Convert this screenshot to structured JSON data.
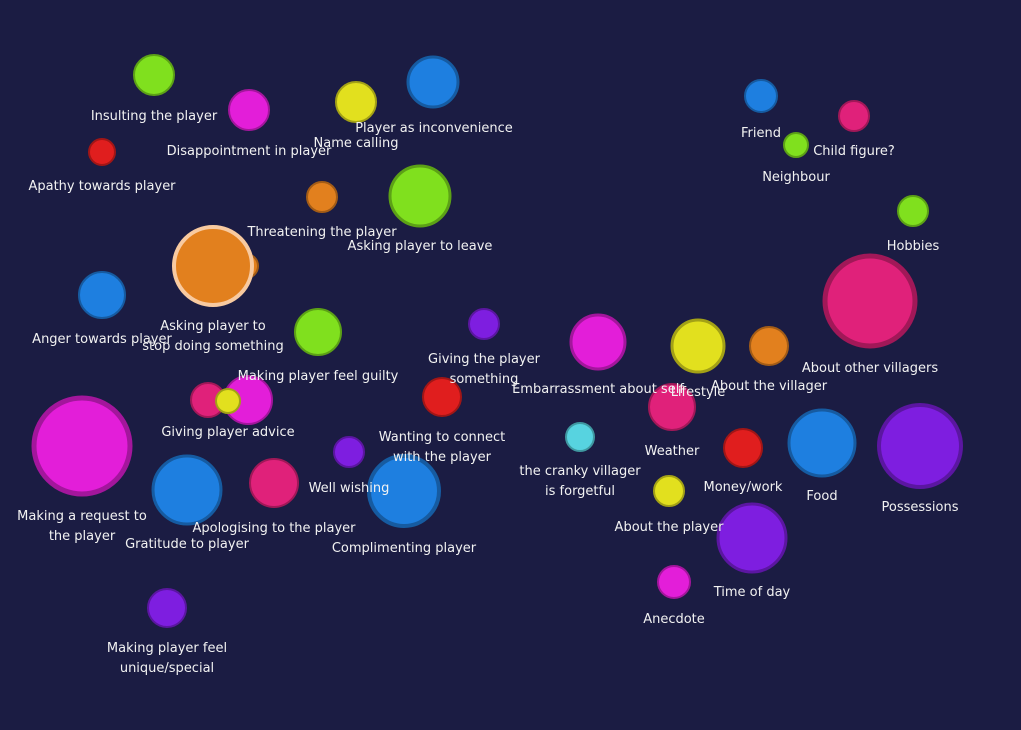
{
  "colors": {
    "background": "#1b1c43",
    "label": "#f2f2f2",
    "green": "#80e01e",
    "magenta": "#e31ed9",
    "pink": "#e0217a",
    "yellow": "#e2e01e",
    "blue": "#1e7fe0",
    "red": "#e01e1e",
    "orange": "#e2801e",
    "violet": "#7e1ee0",
    "cyan": "#57d3e0"
  },
  "nodes": [
    {
      "id": "insulting-the-player",
      "label": "Insulting the player",
      "color": "green",
      "size": 2
    },
    {
      "id": "disappointment-in-player",
      "label": "Disappointment in player",
      "color": "magenta",
      "size": 2
    },
    {
      "id": "name-calling",
      "label": "Name calling",
      "color": "yellow",
      "size": 2
    },
    {
      "id": "player-as-inconvenience",
      "label": "Player as inconvenience",
      "color": "blue",
      "size": 3
    },
    {
      "id": "apathy-towards-player",
      "label": "Apathy towards player",
      "color": "red",
      "size": 1
    },
    {
      "id": "threatening-the-player",
      "label": "Threatening the player",
      "color": "orange",
      "size": 1
    },
    {
      "id": "asking-player-to-leave",
      "label": "Asking player to leave",
      "color": "green",
      "size": 4
    },
    {
      "id": "asking-player-to-stop",
      "label": "Asking player to stop doing something",
      "color": "orange",
      "size": 5,
      "highlighted": true
    },
    {
      "id": "anger-towards-player",
      "label": "Anger towards player",
      "color": "blue",
      "size": 3
    },
    {
      "id": "making-player-feel-guilty",
      "label": "Making player feel guilty",
      "color": "green",
      "size": 3
    },
    {
      "id": "giving-the-player-something",
      "label": "Giving the player something",
      "color": "violet",
      "size": 1
    },
    {
      "id": "giving-player-advice",
      "label": "Giving player advice",
      "color": "magenta",
      "size": 3
    },
    {
      "id": "making-a-request",
      "label": "Making a request to the player",
      "color": "magenta",
      "size": 6
    },
    {
      "id": "gratitude-to-player",
      "label": "Gratitude to player",
      "color": "blue",
      "size": 4
    },
    {
      "id": "apologising-to-the-player",
      "label": "Apologising to the player",
      "color": "pink",
      "size": 3
    },
    {
      "id": "well-wishing",
      "label": "Well wishing",
      "color": "violet",
      "size": 1
    },
    {
      "id": "wanting-to-connect",
      "label": "Wanting to connect with the player",
      "color": "red",
      "size": 2
    },
    {
      "id": "complimenting-player",
      "label": "Complimenting player",
      "color": "blue",
      "size": 4
    },
    {
      "id": "making-player-feel-unique",
      "label": "Making player feel unique/special",
      "color": "violet",
      "size": 2
    },
    {
      "id": "embarrassment-about-self",
      "label": "Embarrassment about self",
      "color": "magenta",
      "size": 3
    },
    {
      "id": "lifestyle",
      "label": "Lifestyle",
      "color": "yellow",
      "size": 3
    },
    {
      "id": "about-the-villager",
      "label": "About the villager",
      "color": "orange",
      "size": 2
    },
    {
      "id": "about-other-villagers",
      "label": "About other villagers",
      "color": "pink",
      "size": 6
    },
    {
      "id": "friend",
      "label": "Friend",
      "color": "blue",
      "size": 1
    },
    {
      "id": "child-figure",
      "label": "Child figure?",
      "color": "pink",
      "size": 1
    },
    {
      "id": "neighbour",
      "label": "Neighbour",
      "color": "green",
      "size": 1
    },
    {
      "id": "hobbies",
      "label": "Hobbies",
      "color": "green",
      "size": 1
    },
    {
      "id": "weather",
      "label": "Weather",
      "color": "pink",
      "size": 2
    },
    {
      "id": "cranky-villager-forgetful",
      "label": "the cranky villager is forgetful",
      "color": "cyan",
      "size": 1
    },
    {
      "id": "money-work",
      "label": "Money/work",
      "color": "red",
      "size": 2
    },
    {
      "id": "food",
      "label": "Food",
      "color": "blue",
      "size": 4
    },
    {
      "id": "possessions",
      "label": "Possessions",
      "color": "violet",
      "size": 5
    },
    {
      "id": "about-the-player",
      "label": "About the player",
      "color": "yellow",
      "size": 1
    },
    {
      "id": "time-of-day",
      "label": "Time of day",
      "color": "violet",
      "size": 4
    },
    {
      "id": "anecdote",
      "label": "Anecdote",
      "color": "magenta",
      "size": 1
    }
  ]
}
